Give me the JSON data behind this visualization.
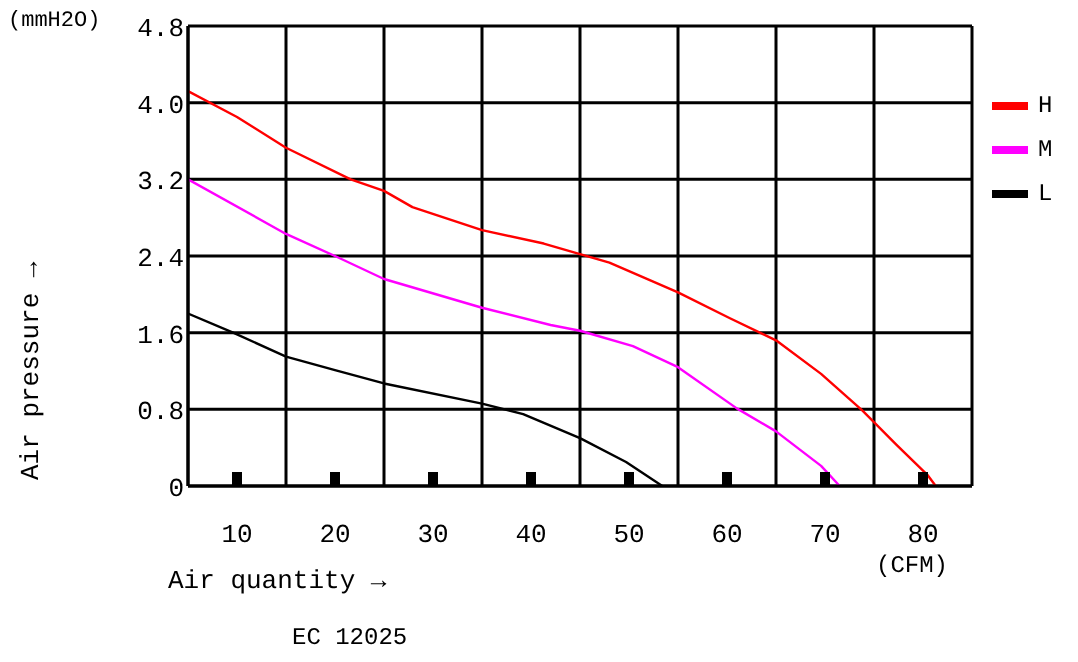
{
  "chart_data": {
    "type": "line",
    "xlabel": "Air quantity →",
    "ylabel": "Air pressure →",
    "annotations": [
      "(mmH2O)",
      "(CFM)",
      "EC 12025"
    ],
    "xlim": [
      5,
      85
    ],
    "xticks": [
      {
        "value": 5,
        "label": null
      },
      10,
      {
        "value": 15,
        "label": null
      },
      20,
      {
        "value": 25,
        "label": null
      },
      30,
      {
        "value": 35,
        "label": null
      },
      40,
      {
        "value": 45,
        "label": null
      },
      50,
      {
        "value": 55,
        "label": null
      },
      60,
      {
        "value": 65,
        "label": null
      },
      70,
      {
        "value": 75,
        "label": null
      },
      80,
      {
        "value": 85,
        "label": null
      }
    ],
    "ylim": [
      0,
      4.8
    ],
    "yticks": [
      0,
      0.8,
      1.6,
      2.4,
      3.2,
      {
        "value": 4,
        "label": "4.0"
      },
      4.8
    ],
    "grid": true,
    "legend": "right",
    "line_style": "solid",
    "marker": "none",
    "series": [
      {
        "name": "H",
        "color": "#ff0000",
        "x": [
          5,
          10,
          15,
          21.6,
          25,
          27.9,
          35,
          41.3,
          45,
          48,
          55,
          60.3,
          65,
          69.6,
          73.8,
          77.3,
          80.5,
          81.3
        ],
        "values": [
          4.12,
          3.85,
          3.53,
          3.2,
          3.08,
          2.91,
          2.67,
          2.53,
          2.42,
          2.33,
          2.02,
          1.75,
          1.52,
          1.17,
          0.79,
          0.43,
          0.11,
          0
        ]
      },
      {
        "name": "M",
        "color": "#ff00ff",
        "x": [
          5,
          15,
          20,
          25,
          35,
          42,
          45,
          50.4,
          55,
          61,
          65,
          69.6,
          71.5
        ],
        "values": [
          3.2,
          2.63,
          2.4,
          2.16,
          1.86,
          1.68,
          1.62,
          1.46,
          1.24,
          0.81,
          0.57,
          0.21,
          0
        ]
      },
      {
        "name": "L",
        "color": "#000000",
        "x": [
          5,
          9.6,
          15,
          20,
          25,
          35,
          39.2,
          45,
          49.7,
          53.4
        ],
        "values": [
          1.8,
          1.6,
          1.35,
          1.21,
          1.07,
          0.86,
          0.75,
          0.5,
          0.25,
          0
        ]
      }
    ]
  }
}
